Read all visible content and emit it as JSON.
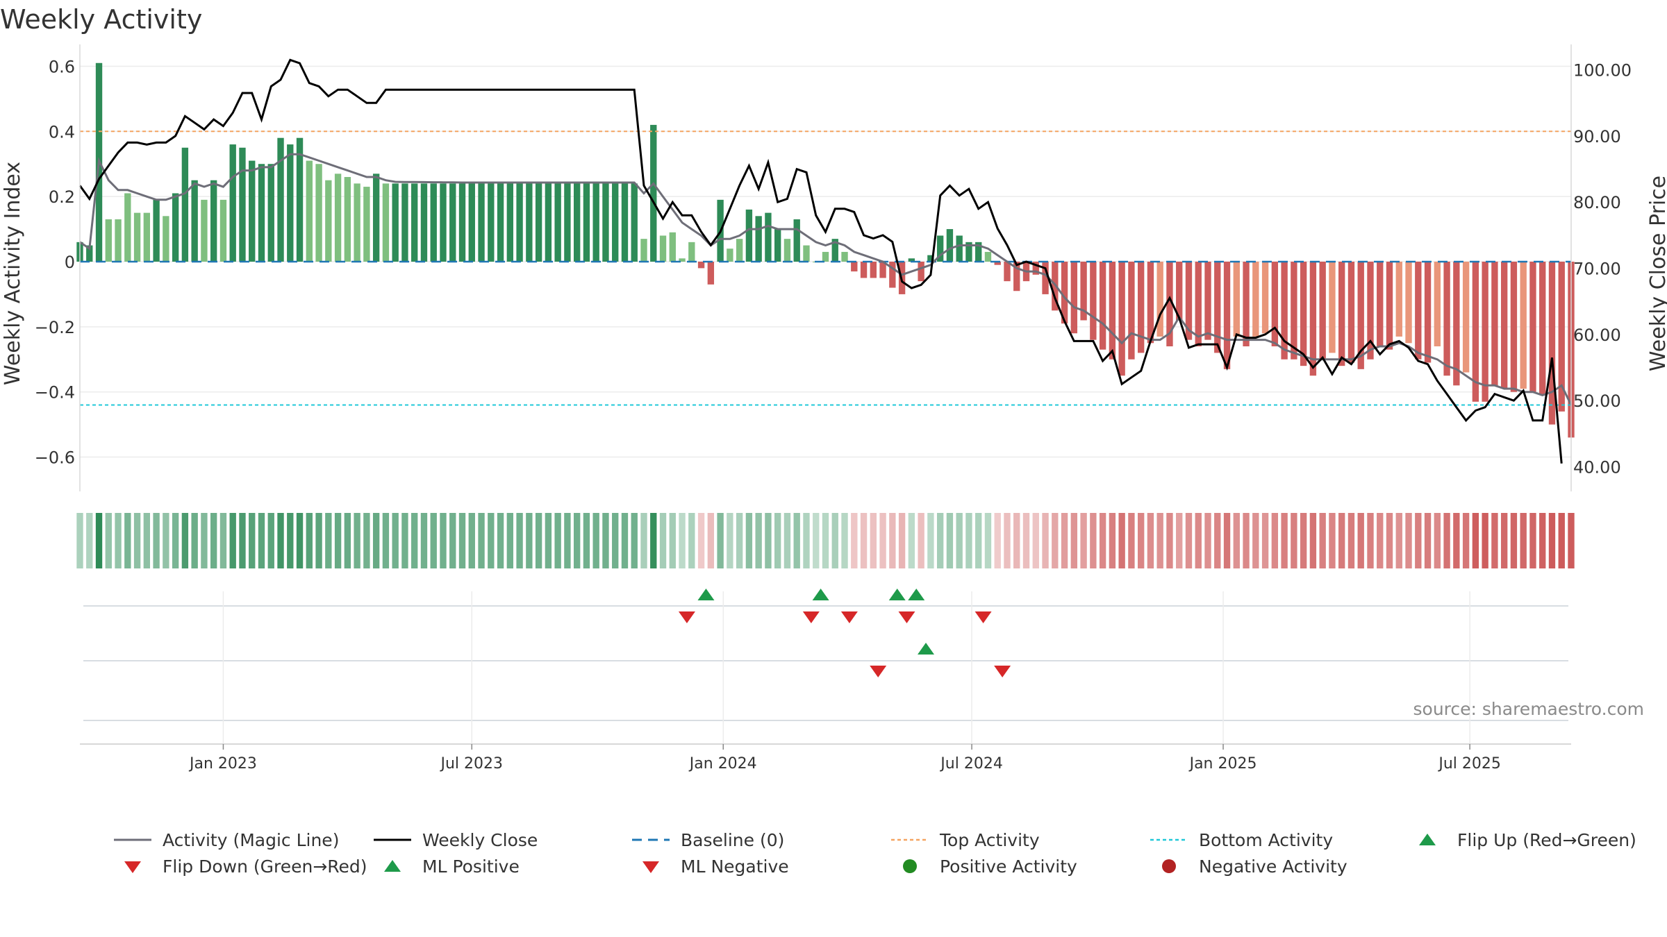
{
  "title": "Weekly Activity",
  "source": "source: sharemaestro.com",
  "legend": {
    "magic_line": "Activity (Magic Line)",
    "weekly_close": "Weekly Close",
    "baseline": "Baseline (0)",
    "top_activity": "Top Activity",
    "bottom_activity": "Bottom Activity",
    "flip_up": "Flip Up (Red→Green)",
    "flip_down": "Flip Down (Green→Red)",
    "ml_positive": "ML Positive",
    "ml_negative": "ML Negative",
    "positive_activity": "Positive Activity",
    "negative_activity": "Negative Activity"
  },
  "colors": {
    "pos_strong": "#2e8b57",
    "pos_weak": "#7fbf7f",
    "neg_strong": "#cd5c5c",
    "neg_weak": "#e9967a",
    "magic_line": "#6e6e78",
    "close": "#000000",
    "baseline": "#1f77b4",
    "top": "#f4a460",
    "bottom": "#20c8d8",
    "flip_up": "#1e9a4a",
    "flip_down": "#d62728"
  },
  "chart_data": {
    "type": "bar",
    "title": "Weekly Activity",
    "ylabel": "Weekly Activity Index",
    "y2label": "Weekly Close Price",
    "ylim": [
      -0.65,
      0.65
    ],
    "y2lim": [
      39,
      103
    ],
    "yticks": [
      0.6,
      0.4,
      0.2,
      0,
      -0.2,
      -0.4,
      -0.6
    ],
    "ytick_labels": [
      "0.6",
      "0.4",
      "0.2",
      "0",
      "−0.2",
      "−0.4",
      "−0.6"
    ],
    "y2ticks": [
      100,
      90,
      80,
      70,
      60,
      50,
      40
    ],
    "y2tick_labels": [
      "100.00",
      "90.00",
      "80.00",
      "70.00",
      "60.00",
      "50.00",
      "40.00"
    ],
    "top_activity": 0.4,
    "bottom_activity": -0.44,
    "baseline": 0,
    "x_start": "2022-09-19",
    "weeks": 157,
    "x_ticks": [
      {
        "label": "Jan 2023",
        "week": 15
      },
      {
        "label": "Jul 2023",
        "week": 41
      },
      {
        "label": "Jan 2024",
        "week": 67.3
      },
      {
        "label": "Jul 2024",
        "week": 93.3
      },
      {
        "label": "Jan 2025",
        "week": 119.6
      },
      {
        "label": "Jul 2025",
        "week": 145.4
      }
    ],
    "activity_keys": [
      [
        0,
        0.06
      ],
      [
        1,
        0.05
      ],
      [
        2,
        0.61
      ],
      [
        3,
        0.13
      ],
      [
        4,
        0.13
      ],
      [
        5,
        0.21
      ],
      [
        6,
        0.15
      ],
      [
        7,
        0.15
      ],
      [
        8,
        0.19
      ],
      [
        9,
        0.14
      ],
      [
        10,
        0.21
      ],
      [
        11,
        0.35
      ],
      [
        12,
        0.25
      ],
      [
        13,
        0.19
      ],
      [
        14,
        0.25
      ],
      [
        15,
        0.19
      ],
      [
        16,
        0.36
      ],
      [
        17,
        0.35
      ],
      [
        18,
        0.31
      ],
      [
        19,
        0.3
      ],
      [
        20,
        0.3
      ],
      [
        21,
        0.38
      ],
      [
        22,
        0.36
      ],
      [
        23,
        0.38
      ],
      [
        24,
        0.31
      ],
      [
        25,
        0.3
      ],
      [
        26,
        0.25
      ],
      [
        27,
        0.27
      ],
      [
        28,
        0.26
      ],
      [
        29,
        0.24
      ],
      [
        30,
        0.23
      ],
      [
        31,
        0.27
      ],
      [
        32,
        0.24
      ],
      [
        58,
        0.24
      ],
      [
        59,
        0.07
      ],
      [
        60,
        0.42
      ],
      [
        61,
        0.08
      ],
      [
        62,
        0.09
      ],
      [
        63,
        0.01
      ],
      [
        64,
        0.06
      ],
      [
        65,
        -0.02
      ],
      [
        66,
        -0.07
      ],
      [
        67,
        0.19
      ],
      [
        68,
        0.04
      ],
      [
        69,
        0.07
      ],
      [
        70,
        0.16
      ],
      [
        71,
        0.14
      ],
      [
        72,
        0.15
      ],
      [
        73,
        0.1
      ],
      [
        74,
        0.07
      ],
      [
        75,
        0.13
      ],
      [
        76,
        0.05
      ],
      [
        77,
        0.0
      ],
      [
        78,
        0.03
      ],
      [
        79,
        0.07
      ],
      [
        80,
        0.03
      ],
      [
        81,
        -0.03
      ],
      [
        82,
        -0.05
      ],
      [
        83,
        -0.05
      ],
      [
        84,
        -0.05
      ],
      [
        85,
        -0.08
      ],
      [
        86,
        -0.1
      ],
      [
        87,
        0.01
      ],
      [
        88,
        -0.06
      ],
      [
        89,
        0.02
      ],
      [
        90,
        0.08
      ],
      [
        91,
        0.1
      ],
      [
        92,
        0.08
      ],
      [
        93,
        0.06
      ],
      [
        94,
        0.06
      ],
      [
        95,
        0.03
      ],
      [
        96,
        -0.01
      ],
      [
        97,
        -0.06
      ],
      [
        98,
        -0.09
      ],
      [
        99,
        -0.06
      ],
      [
        100,
        -0.04
      ],
      [
        101,
        -0.1
      ],
      [
        102,
        -0.15
      ],
      [
        103,
        -0.19
      ],
      [
        104,
        -0.22
      ],
      [
        105,
        -0.18
      ],
      [
        106,
        -0.24
      ],
      [
        107,
        -0.27
      ],
      [
        108,
        -0.3
      ],
      [
        109,
        -0.35
      ],
      [
        110,
        -0.3
      ],
      [
        111,
        -0.28
      ],
      [
        112,
        -0.25
      ],
      [
        113,
        -0.23
      ],
      [
        114,
        -0.26
      ],
      [
        115,
        -0.18
      ],
      [
        116,
        -0.24
      ],
      [
        117,
        -0.26
      ],
      [
        118,
        -0.24
      ],
      [
        119,
        -0.28
      ],
      [
        120,
        -0.33
      ],
      [
        121,
        -0.23
      ],
      [
        122,
        -0.26
      ],
      [
        123,
        -0.23
      ],
      [
        124,
        -0.22
      ],
      [
        125,
        -0.26
      ],
      [
        126,
        -0.3
      ],
      [
        127,
        -0.3
      ],
      [
        128,
        -0.32
      ],
      [
        129,
        -0.35
      ],
      [
        130,
        -0.3
      ],
      [
        131,
        -0.28
      ],
      [
        132,
        -0.32
      ],
      [
        133,
        -0.31
      ],
      [
        134,
        -0.33
      ],
      [
        135,
        -0.3
      ],
      [
        136,
        -0.26
      ],
      [
        137,
        -0.27
      ],
      [
        138,
        -0.23
      ],
      [
        139,
        -0.25
      ],
      [
        140,
        -0.3
      ],
      [
        141,
        -0.31
      ],
      [
        142,
        -0.26
      ],
      [
        143,
        -0.35
      ],
      [
        144,
        -0.38
      ],
      [
        145,
        -0.34
      ],
      [
        146,
        -0.43
      ],
      [
        147,
        -0.43
      ],
      [
        148,
        -0.38
      ],
      [
        149,
        -0.39
      ],
      [
        150,
        -0.4
      ],
      [
        151,
        -0.39
      ],
      [
        152,
        -0.4
      ],
      [
        153,
        -0.41
      ],
      [
        154,
        -0.5
      ],
      [
        155,
        -0.46
      ],
      [
        156,
        -0.54
      ]
    ],
    "magic_line_keys": [
      [
        0,
        0.06
      ],
      [
        1,
        0.04
      ],
      [
        2,
        0.31
      ],
      [
        3,
        0.25
      ],
      [
        4,
        0.22
      ],
      [
        5,
        0.22
      ],
      [
        6,
        0.21
      ],
      [
        7,
        0.2
      ],
      [
        8,
        0.19
      ],
      [
        9,
        0.19
      ],
      [
        10,
        0.2
      ],
      [
        11,
        0.21
      ],
      [
        12,
        0.24
      ],
      [
        13,
        0.23
      ],
      [
        14,
        0.24
      ],
      [
        15,
        0.23
      ],
      [
        16,
        0.26
      ],
      [
        17,
        0.28
      ],
      [
        18,
        0.28
      ],
      [
        19,
        0.29
      ],
      [
        20,
        0.29
      ],
      [
        21,
        0.31
      ],
      [
        22,
        0.33
      ],
      [
        23,
        0.33
      ],
      [
        24,
        0.32
      ],
      [
        25,
        0.31
      ],
      [
        26,
        0.3
      ],
      [
        27,
        0.29
      ],
      [
        28,
        0.28
      ],
      [
        29,
        0.27
      ],
      [
        30,
        0.26
      ],
      [
        31,
        0.26
      ],
      [
        32,
        0.25
      ],
      [
        33,
        0.245
      ],
      [
        40,
        0.243
      ],
      [
        58,
        0.243
      ],
      [
        59,
        0.21
      ],
      [
        60,
        0.24
      ],
      [
        61,
        0.2
      ],
      [
        62,
        0.16
      ],
      [
        63,
        0.12
      ],
      [
        64,
        0.1
      ],
      [
        65,
        0.08
      ],
      [
        66,
        0.05
      ],
      [
        67,
        0.07
      ],
      [
        68,
        0.07
      ],
      [
        69,
        0.08
      ],
      [
        70,
        0.1
      ],
      [
        71,
        0.1
      ],
      [
        72,
        0.11
      ],
      [
        73,
        0.1
      ],
      [
        74,
        0.1
      ],
      [
        75,
        0.1
      ],
      [
        76,
        0.08
      ],
      [
        77,
        0.06
      ],
      [
        78,
        0.05
      ],
      [
        79,
        0.06
      ],
      [
        80,
        0.05
      ],
      [
        81,
        0.03
      ],
      [
        82,
        0.02
      ],
      [
        83,
        0.01
      ],
      [
        84,
        0.0
      ],
      [
        85,
        -0.02
      ],
      [
        86,
        -0.04
      ],
      [
        87,
        -0.03
      ],
      [
        88,
        -0.02
      ],
      [
        89,
        -0.01
      ],
      [
        90,
        0.02
      ],
      [
        91,
        0.04
      ],
      [
        92,
        0.05
      ],
      [
        93,
        0.05
      ],
      [
        94,
        0.05
      ],
      [
        95,
        0.04
      ],
      [
        96,
        0.02
      ],
      [
        97,
        0.0
      ],
      [
        98,
        -0.02
      ],
      [
        99,
        -0.03
      ],
      [
        100,
        -0.03
      ],
      [
        101,
        -0.04
      ],
      [
        102,
        -0.07
      ],
      [
        103,
        -0.11
      ],
      [
        104,
        -0.14
      ],
      [
        105,
        -0.15
      ],
      [
        106,
        -0.17
      ],
      [
        107,
        -0.19
      ],
      [
        108,
        -0.22
      ],
      [
        109,
        -0.25
      ],
      [
        110,
        -0.22
      ],
      [
        111,
        -0.23
      ],
      [
        112,
        -0.24
      ],
      [
        113,
        -0.24
      ],
      [
        114,
        -0.22
      ],
      [
        115,
        -0.17
      ],
      [
        116,
        -0.21
      ],
      [
        117,
        -0.23
      ],
      [
        118,
        -0.22
      ],
      [
        119,
        -0.23
      ],
      [
        120,
        -0.24
      ],
      [
        121,
        -0.24
      ],
      [
        122,
        -0.24
      ],
      [
        123,
        -0.24
      ],
      [
        124,
        -0.24
      ],
      [
        125,
        -0.25
      ],
      [
        126,
        -0.27
      ],
      [
        127,
        -0.28
      ],
      [
        128,
        -0.29
      ],
      [
        129,
        -0.3
      ],
      [
        130,
        -0.3
      ],
      [
        131,
        -0.3
      ],
      [
        132,
        -0.3
      ],
      [
        133,
        -0.3
      ],
      [
        134,
        -0.29
      ],
      [
        135,
        -0.27
      ],
      [
        136,
        -0.26
      ],
      [
        137,
        -0.26
      ],
      [
        138,
        -0.25
      ],
      [
        139,
        -0.26
      ],
      [
        140,
        -0.28
      ],
      [
        141,
        -0.29
      ],
      [
        142,
        -0.3
      ],
      [
        143,
        -0.32
      ],
      [
        144,
        -0.33
      ],
      [
        145,
        -0.35
      ],
      [
        146,
        -0.37
      ],
      [
        147,
        -0.38
      ],
      [
        148,
        -0.38
      ],
      [
        149,
        -0.39
      ],
      [
        150,
        -0.39
      ],
      [
        151,
        -0.4
      ],
      [
        152,
        -0.4
      ],
      [
        153,
        -0.41
      ],
      [
        154,
        -0.4
      ],
      [
        155,
        -0.38
      ],
      [
        156,
        -0.44
      ]
    ],
    "close_keys": [
      [
        0,
        82.5
      ],
      [
        1,
        80.5
      ],
      [
        2,
        83.5
      ],
      [
        3,
        85.5
      ],
      [
        4,
        87.5
      ],
      [
        5,
        89
      ],
      [
        6,
        89
      ],
      [
        7,
        88.7
      ],
      [
        8,
        89
      ],
      [
        9,
        89
      ],
      [
        10,
        90
      ],
      [
        11,
        93
      ],
      [
        12,
        92
      ],
      [
        13,
        91
      ],
      [
        14,
        92.5
      ],
      [
        15,
        91.5
      ],
      [
        16,
        93.5
      ],
      [
        17,
        96.5
      ],
      [
        18,
        96.5
      ],
      [
        19,
        92.5
      ],
      [
        20,
        97.5
      ],
      [
        21,
        98.5
      ],
      [
        22,
        101.5
      ],
      [
        23,
        101
      ],
      [
        24,
        98
      ],
      [
        25,
        97.5
      ],
      [
        26,
        96
      ],
      [
        27,
        97
      ],
      [
        28,
        97
      ],
      [
        29,
        96
      ],
      [
        30,
        95
      ],
      [
        31,
        95
      ],
      [
        32,
        97
      ],
      [
        33,
        97
      ],
      [
        57,
        97
      ],
      [
        58,
        97
      ],
      [
        59,
        82.5
      ],
      [
        60,
        80
      ],
      [
        61,
        77.5
      ],
      [
        62,
        80
      ],
      [
        63,
        78
      ],
      [
        64,
        78
      ],
      [
        65,
        75.5
      ],
      [
        66,
        73.5
      ],
      [
        67,
        75.5
      ],
      [
        68,
        79
      ],
      [
        69,
        82.5
      ],
      [
        70,
        85.5
      ],
      [
        71,
        82
      ],
      [
        72,
        86
      ],
      [
        73,
        80
      ],
      [
        74,
        80.5
      ],
      [
        75,
        85
      ],
      [
        76,
        84.5
      ],
      [
        77,
        78
      ],
      [
        78,
        75.5
      ],
      [
        79,
        79
      ],
      [
        80,
        79
      ],
      [
        81,
        78.5
      ],
      [
        82,
        75
      ],
      [
        83,
        74.5
      ],
      [
        84,
        75
      ],
      [
        85,
        74
      ],
      [
        86,
        68
      ],
      [
        87,
        67
      ],
      [
        88,
        67.5
      ],
      [
        89,
        69
      ],
      [
        90,
        81
      ],
      [
        91,
        82.5
      ],
      [
        92,
        81
      ],
      [
        93,
        82
      ],
      [
        94,
        79
      ],
      [
        95,
        80
      ],
      [
        96,
        76
      ],
      [
        97,
        73.5
      ],
      [
        98,
        70.5
      ],
      [
        99,
        71
      ],
      [
        100,
        70.5
      ],
      [
        101,
        70
      ],
      [
        102,
        65.5
      ],
      [
        103,
        62
      ],
      [
        104,
        59
      ],
      [
        105,
        59
      ],
      [
        106,
        59
      ],
      [
        107,
        56
      ],
      [
        108,
        57.5
      ],
      [
        109,
        52.5
      ],
      [
        110,
        53.5
      ],
      [
        111,
        54.5
      ],
      [
        112,
        59
      ],
      [
        113,
        63
      ],
      [
        114,
        65.5
      ],
      [
        115,
        62.5
      ],
      [
        116,
        58
      ],
      [
        117,
        58.5
      ],
      [
        118,
        58.5
      ],
      [
        119,
        58.5
      ],
      [
        120,
        55
      ],
      [
        121,
        60
      ],
      [
        122,
        59.5
      ],
      [
        123,
        59.5
      ],
      [
        124,
        60
      ],
      [
        125,
        61
      ],
      [
        126,
        59
      ],
      [
        127,
        58
      ],
      [
        128,
        57
      ],
      [
        129,
        55
      ],
      [
        130,
        56.5
      ],
      [
        131,
        54
      ],
      [
        132,
        56.5
      ],
      [
        133,
        55.5
      ],
      [
        134,
        57.5
      ],
      [
        135,
        59
      ],
      [
        136,
        57
      ],
      [
        137,
        58.5
      ],
      [
        138,
        59
      ],
      [
        139,
        58
      ],
      [
        140,
        56
      ],
      [
        141,
        55.5
      ],
      [
        142,
        53
      ],
      [
        143,
        51
      ],
      [
        144,
        49
      ],
      [
        145,
        47
      ],
      [
        146,
        48.5
      ],
      [
        147,
        49
      ],
      [
        148,
        51
      ],
      [
        149,
        50.5
      ],
      [
        150,
        50
      ],
      [
        151,
        51.5
      ],
      [
        152,
        47
      ],
      [
        153,
        47
      ],
      [
        154,
        56.5
      ],
      [
        155,
        40.5
      ]
    ],
    "flip_up_weeks": [
      65.5,
      77.5,
      85.5,
      87.5
    ],
    "flip_down_weeks": [
      63.5,
      76.5,
      80.5,
      86.5,
      94.5
    ],
    "ml_positive_weeks": [
      88.5
    ],
    "ml_negative_weeks": [
      83.5,
      96.5
    ]
  }
}
